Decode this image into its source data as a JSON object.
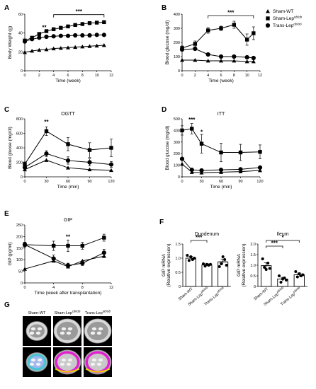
{
  "figure": {
    "panel_labels": [
      "A",
      "B",
      "C",
      "D",
      "E",
      "F",
      "G"
    ],
    "legend": {
      "entries": [
        {
          "label": "Sham-WT",
          "marker": "triangle"
        },
        {
          "label": "Sham-Lep",
          "sup": "ob/ob",
          "marker": "square"
        },
        {
          "label": "Trans-Lep",
          "sup": "ob/ob",
          "marker": "circle"
        }
      ]
    },
    "ct_panel": {
      "label": "G",
      "headers": [
        "Sham-WT",
        "Sham-Lep",
        "Trans-Lep"
      ],
      "header_sups": [
        "",
        "ob/ob",
        "ob/ob"
      ]
    }
  },
  "chart_data": [
    {
      "id": "A",
      "type": "line",
      "title": "",
      "xlabel": "Time (week)",
      "ylabel": "Body Weight (g)",
      "xlim": [
        0,
        12
      ],
      "ylim": [
        0,
        60
      ],
      "xticks": [
        0,
        2,
        4,
        6,
        8,
        10,
        12
      ],
      "yticks": [
        0,
        20,
        40,
        60
      ],
      "x": [
        0,
        1,
        2,
        3,
        4,
        5,
        6,
        7,
        8,
        9,
        10,
        11
      ],
      "series": [
        {
          "name": "Sham-WT",
          "marker": "triangle",
          "values": [
            19.5,
            21,
            22,
            22.5,
            23.5,
            24,
            24.5,
            25,
            25.5,
            26,
            26.5,
            27
          ]
        },
        {
          "name": "Sham-Lepob/ob",
          "marker": "square",
          "values": [
            32,
            35,
            39,
            42,
            44,
            45.5,
            47,
            48.5,
            49.5,
            50.5,
            51,
            51.5
          ]
        },
        {
          "name": "Trans-Lepob/ob",
          "marker": "circle",
          "values": [
            31,
            33.5,
            35,
            36,
            36.5,
            37,
            37,
            37.5,
            37.5,
            37.5,
            38,
            38
          ]
        }
      ],
      "annotations": [
        {
          "text": "**",
          "x": 2.7,
          "y": 44
        },
        {
          "text": "***",
          "x": 8,
          "y": 61,
          "bracket": [
            4,
            11
          ]
        }
      ]
    },
    {
      "id": "B",
      "type": "line",
      "title": "",
      "xlabel": "Time (week)",
      "ylabel": "Blood glucose (mg/dl)",
      "xlim": [
        0,
        12
      ],
      "ylim": [
        0,
        400
      ],
      "xticks": [
        0,
        2,
        4,
        6,
        8,
        10,
        12
      ],
      "yticks": [
        0,
        100,
        200,
        300,
        400
      ],
      "x": [
        0,
        2,
        4,
        6,
        8,
        10,
        11
      ],
      "series": [
        {
          "name": "Sham-WT",
          "marker": "triangle",
          "values": [
            75,
            75,
            70,
            70,
            70,
            65,
            65
          ]
        },
        {
          "name": "Sham-Lepob/ob",
          "marker": "square",
          "values": [
            160,
            190,
            285,
            300,
            325,
            220,
            265
          ],
          "errors": [
            15,
            20,
            20,
            15,
            25,
            40,
            45
          ]
        },
        {
          "name": "Trans-Lepob/ob",
          "marker": "circle",
          "values": [
            150,
            155,
            115,
            100,
            100,
            95,
            90
          ]
        }
      ],
      "annotations": [
        {
          "text": "***",
          "x": 7.5,
          "y": 400,
          "bracket": [
            4,
            11
          ]
        }
      ]
    },
    {
      "id": "C",
      "type": "line",
      "title": "OGTT",
      "xlabel": "Time (min)",
      "ylabel": "Blood gluose (mg/dl)",
      "xlim": [
        0,
        120
      ],
      "ylim": [
        0,
        800
      ],
      "xticks": [
        0,
        30,
        60,
        90,
        120
      ],
      "yticks": [
        0,
        200,
        400,
        600,
        800
      ],
      "x": [
        0,
        30,
        60,
        90,
        120
      ],
      "series": [
        {
          "name": "Sham-WT",
          "marker": "triangle",
          "values": [
            100,
            230,
            125,
            100,
            90
          ]
        },
        {
          "name": "Sham-Lepob/ob",
          "marker": "square",
          "values": [
            175,
            630,
            450,
            370,
            400
          ],
          "errors": [
            30,
            60,
            90,
            100,
            120
          ]
        },
        {
          "name": "Trans-Lepob/ob",
          "marker": "circle",
          "values": [
            130,
            320,
            225,
            200,
            170
          ],
          "errors": [
            20,
            40,
            50,
            50,
            40
          ]
        }
      ],
      "annotations": [
        {
          "text": "**",
          "x": 30,
          "y": 730
        }
      ]
    },
    {
      "id": "D",
      "type": "line",
      "title": "ITT",
      "xlabel": "Time (min)",
      "ylabel": "Blood glucose (mg/dl)",
      "xlim": [
        0,
        120
      ],
      "ylim": [
        0,
        500
      ],
      "xticks": [
        0,
        30,
        60,
        90,
        120
      ],
      "yticks": [
        0,
        100,
        200,
        300,
        400,
        500
      ],
      "x": [
        0,
        15,
        30,
        60,
        90,
        120
      ],
      "series": [
        {
          "name": "Sham-WT",
          "marker": "triangle",
          "values": [
            110,
            40,
            35,
            40,
            45,
            55
          ]
        },
        {
          "name": "Sham-Lepob/ob",
          "marker": "square",
          "values": [
            400,
            415,
            285,
            210,
            210,
            215
          ],
          "errors": [
            40,
            45,
            80,
            80,
            70,
            60
          ]
        },
        {
          "name": "Trans-Lepob/ob",
          "marker": "circle",
          "values": [
            155,
            60,
            55,
            60,
            65,
            80
          ]
        }
      ],
      "annotations": [
        {
          "text": "***",
          "x": 15,
          "y": 475
        },
        {
          "text": "*",
          "x": 30,
          "y": 370
        }
      ]
    },
    {
      "id": "E",
      "type": "line",
      "title": "GIP",
      "xlabel": "Time (week after transplantation)",
      "ylabel": "GIP (pg/ml)",
      "xlim": [
        0,
        12
      ],
      "ylim": [
        0,
        250
      ],
      "xticks": [
        0,
        4,
        8,
        12
      ],
      "yticks": [
        0,
        50,
        100,
        150,
        200,
        250
      ],
      "x": [
        0,
        4,
        6,
        8,
        11
      ],
      "series": [
        {
          "name": "Sham-WT",
          "marker": "triangle",
          "values": [
            60,
            95,
            70,
            95,
            115
          ]
        },
        {
          "name": "Sham-Lepob/ob",
          "marker": "square",
          "values": [
            165,
            160,
            160,
            160,
            195
          ],
          "errors": [
            10,
            20,
            25,
            15,
            15
          ]
        },
        {
          "name": "Trans-Lepob/ob",
          "marker": "circle",
          "values": [
            165,
            105,
            75,
            85,
            130
          ],
          "errors": [
            10,
            15,
            10,
            10,
            15
          ]
        }
      ],
      "annotations": [
        {
          "text": "**",
          "x": 6,
          "y": 190
        }
      ]
    },
    {
      "id": "F1",
      "type": "bar",
      "title": "Duodenum",
      "xlabel": "",
      "ylabel": "GIP mRNA (Relative expression)",
      "ylim": [
        0,
        1.5
      ],
      "yticks": [
        0,
        0.5,
        1.0,
        1.5
      ],
      "categories": [
        "Sham-WT",
        "Sham-Lepob/ob",
        "Trans-Lepob/ob"
      ],
      "values": [
        1.0,
        0.76,
        0.87
      ],
      "errors": [
        0.06,
        0.04,
        0.1
      ],
      "points": [
        [
          1.1,
          0.92,
          1.05,
          0.95,
          1.0
        ],
        [
          0.8,
          0.72,
          0.78,
          0.75,
          0.78
        ],
        [
          0.7,
          0.8,
          1.05,
          0.95,
          0.75
        ]
      ],
      "annotations": [
        {
          "text": "***",
          "between": [
            0,
            1
          ]
        }
      ]
    },
    {
      "id": "F2",
      "type": "bar",
      "title": "Ileum",
      "xlabel": "",
      "ylabel": "GIP mRNA (Relative expression)",
      "ylim": [
        0,
        2.0
      ],
      "yticks": [
        0,
        0.5,
        1.0,
        1.5,
        2.0
      ],
      "categories": [
        "Sham-WT",
        "Sham-Lepob/ob",
        "Trans-Lepob/ob"
      ],
      "values": [
        0.98,
        0.35,
        0.55
      ],
      "errors": [
        0.14,
        0.08,
        0.08
      ],
      "points": [
        [
          1.3,
          0.9,
          0.8,
          1.1,
          0.85
        ],
        [
          0.5,
          0.2,
          0.35,
          0.4,
          0.3
        ],
        [
          0.7,
          0.45,
          0.6,
          0.5,
          0.55
        ]
      ],
      "annotations": [
        {
          "text": "***",
          "between": [
            0,
            1
          ]
        },
        {
          "text": "*",
          "between": [
            0,
            2
          ]
        }
      ]
    }
  ]
}
